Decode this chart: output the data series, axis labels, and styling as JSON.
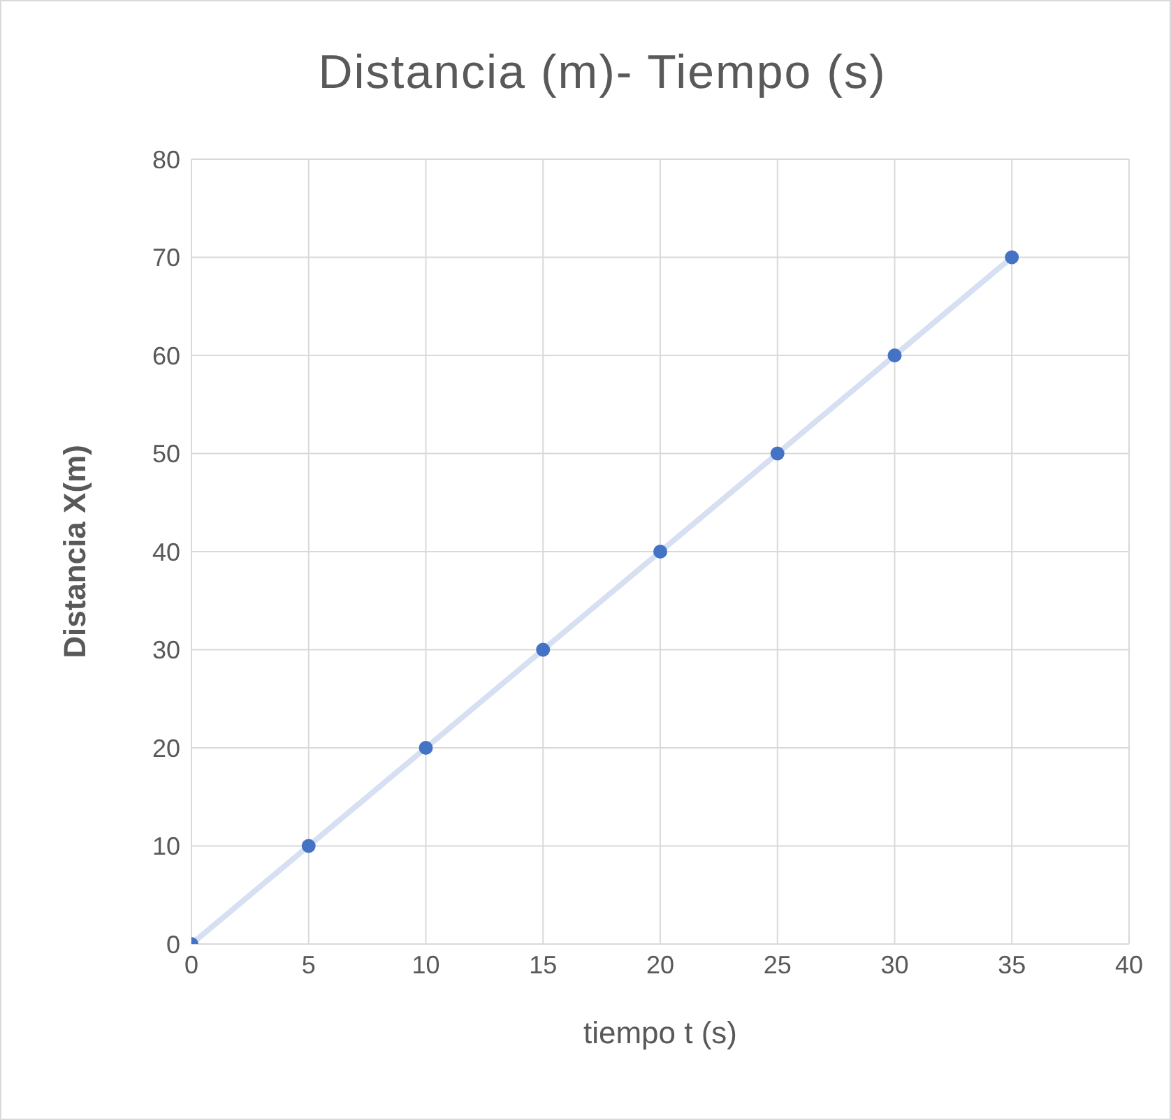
{
  "chart_data": {
    "type": "scatter",
    "title": "Distancia (m)- Tiempo (s)",
    "xlabel": "tiempo t (s)",
    "ylabel": "Distancia X(m)",
    "x": [
      0,
      5,
      10,
      15,
      20,
      25,
      30,
      35
    ],
    "series": [
      {
        "type": "line",
        "color": "#d6e0f2",
        "values": [
          0,
          10,
          20,
          30,
          40,
          50,
          60,
          70
        ],
        "marker": "none",
        "line_style": "solid"
      },
      {
        "color": "#4472c4",
        "values": [
          0,
          10,
          20,
          30,
          40,
          50,
          60,
          70
        ],
        "marker": "circle"
      }
    ],
    "xlim": [
      0,
      40
    ],
    "xticks": [
      0,
      5,
      10,
      15,
      20,
      25,
      30,
      35,
      40
    ],
    "ylim": [
      0,
      80
    ],
    "yticks": [
      0,
      10,
      20,
      30,
      40,
      50,
      60,
      70,
      80
    ],
    "grid": true
  }
}
